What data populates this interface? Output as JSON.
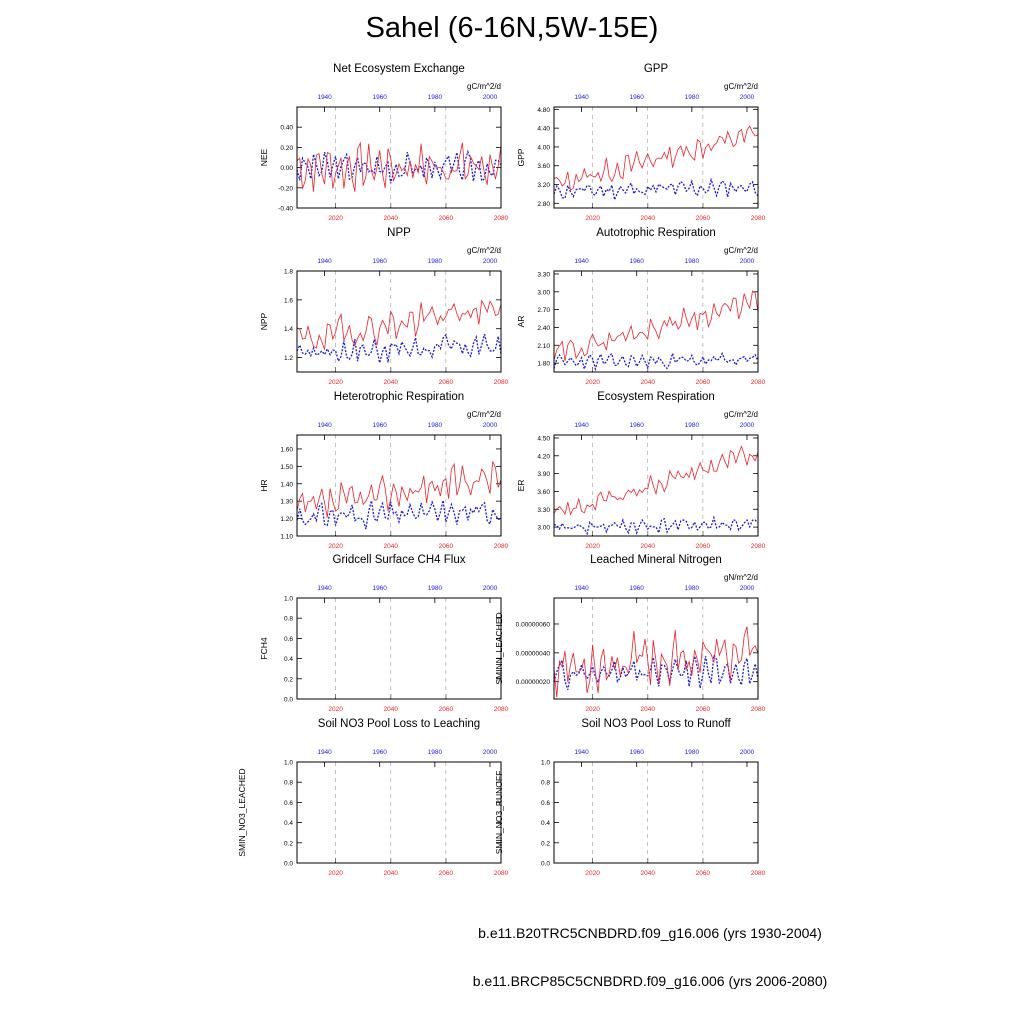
{
  "title": "Sahel (6-16N,5W-15E)",
  "colors": {
    "future": "#e8232a",
    "historical": "#1a1adc",
    "frame": "#000000",
    "grid": "#999999"
  },
  "axes": {
    "bottom_ticks": [
      "2020",
      "2040",
      "2060",
      "2080"
    ],
    "top_ticks": [
      "1940",
      "1960",
      "1980",
      "2000"
    ]
  },
  "legend": [
    {
      "label": "b.e11.B20TRC5CNBDRD.f09_g16.006 (yrs 1930-2004)",
      "color": "#1a1adc",
      "style": "dashed"
    },
    {
      "label": "b.e11.BRCP85C5CNBDRD.f09_g16.006 (yrs 2006-2080)",
      "color": "#e8232a",
      "style": "solid"
    }
  ],
  "chart_data": [
    {
      "type": "line",
      "title": "Net Ecosystem Exchange",
      "ylabel": "NEE",
      "units": "gC/m^2/d",
      "ylim": [
        -0.4,
        0.6
      ],
      "yticks": [
        "-0.40",
        "-0.20",
        "0.00",
        "0.20",
        "0.40"
      ],
      "ytick_values": [
        -0.4,
        -0.2,
        0,
        0.2,
        0.4
      ],
      "series": [
        {
          "name": "historical",
          "base": [
            0.0,
            0.0
          ],
          "amp": 0.14,
          "seed": 3
        },
        {
          "name": "future",
          "base": [
            0.0,
            0.02
          ],
          "amp": 0.22,
          "seed": 7
        }
      ]
    },
    {
      "type": "line",
      "title": "GPP",
      "ylabel": "GPP",
      "units": "gC/m^2/d",
      "ylim": [
        2.7,
        4.85
      ],
      "yticks": [
        "2.80",
        "3.20",
        "3.60",
        "4.00",
        "4.40",
        "4.80"
      ],
      "ytick_values": [
        2.8,
        3.2,
        3.6,
        4.0,
        4.4,
        4.8
      ],
      "series": [
        {
          "name": "historical",
          "base": [
            3.05,
            3.15
          ],
          "amp": 0.18,
          "seed": 11
        },
        {
          "name": "future",
          "base": [
            3.2,
            4.3
          ],
          "amp": 0.25,
          "seed": 13
        }
      ]
    },
    {
      "type": "line",
      "title": "NPP",
      "ylabel": "NPP",
      "units": "gC/m^2/d",
      "ylim": [
        1.1,
        1.8
      ],
      "yticks": [
        "1.2",
        "1.4",
        "1.6",
        "1.8"
      ],
      "ytick_values": [
        1.2,
        1.4,
        1.6,
        1.8
      ],
      "series": [
        {
          "name": "historical",
          "base": [
            1.24,
            1.28
          ],
          "amp": 0.09,
          "seed": 17
        },
        {
          "name": "future",
          "base": [
            1.32,
            1.55
          ],
          "amp": 0.12,
          "seed": 19
        }
      ]
    },
    {
      "type": "line",
      "title": "Autotrophic Respiration",
      "ylabel": "AR",
      "units": "gC/m^2/d",
      "ylim": [
        1.65,
        3.35
      ],
      "yticks": [
        "1.80",
        "2.10",
        "2.40",
        "2.70",
        "3.00",
        "3.30"
      ],
      "ytick_values": [
        1.8,
        2.1,
        2.4,
        2.7,
        3.0,
        3.3
      ],
      "series": [
        {
          "name": "historical",
          "base": [
            1.82,
            1.85
          ],
          "amp": 0.12,
          "seed": 23
        },
        {
          "name": "future",
          "base": [
            1.95,
            2.85
          ],
          "amp": 0.2,
          "seed": 29
        }
      ]
    },
    {
      "type": "line",
      "title": "Heterotrophic Respiration",
      "ylabel": "HR",
      "units": "gC/m^2/d",
      "ylim": [
        1.1,
        1.68
      ],
      "yticks": [
        "1.10",
        "1.20",
        "1.30",
        "1.40",
        "1.50",
        "1.60"
      ],
      "ytick_values": [
        1.1,
        1.2,
        1.3,
        1.4,
        1.5,
        1.6
      ],
      "series": [
        {
          "name": "historical",
          "base": [
            1.21,
            1.24
          ],
          "amp": 0.07,
          "seed": 31
        },
        {
          "name": "future",
          "base": [
            1.25,
            1.45
          ],
          "amp": 0.1,
          "seed": 37
        }
      ]
    },
    {
      "type": "line",
      "title": "Ecosystem Respiration",
      "ylabel": "ER",
      "units": "gC/m^2/d",
      "ylim": [
        2.85,
        4.55
      ],
      "yticks": [
        "3.00",
        "3.30",
        "3.60",
        "3.90",
        "4.20",
        "4.50"
      ],
      "ytick_values": [
        3.0,
        3.3,
        3.6,
        3.9,
        4.2,
        4.5
      ],
      "series": [
        {
          "name": "historical",
          "base": [
            3.0,
            3.05
          ],
          "amp": 0.12,
          "seed": 41
        },
        {
          "name": "future",
          "base": [
            3.2,
            4.25
          ],
          "amp": 0.17,
          "seed": 43
        }
      ]
    },
    {
      "type": "line",
      "title": "Gridcell Surface CH4 Flux",
      "ylabel": "FCH4",
      "units": "",
      "ylim": [
        0,
        1
      ],
      "yticks": [
        "0.0",
        "0.2",
        "0.4",
        "0.6",
        "0.8",
        "1.0"
      ],
      "ytick_values": [
        0,
        0.2,
        0.4,
        0.6,
        0.8,
        1.0
      ],
      "series": []
    },
    {
      "type": "line",
      "title": "Leached Mineral Nitrogen",
      "ylabel": "SMINN_LEACHED",
      "units": "gN/m^2/d",
      "ylim": [
        8e-08,
        7.8e-07
      ],
      "yticks": [
        "0.00000020",
        "0.00000040",
        "0.00000060"
      ],
      "ytick_values": [
        2e-07,
        4e-07,
        6e-07
      ],
      "series": [
        {
          "name": "historical",
          "base": [
            2.5e-07,
            2.8e-07
          ],
          "amp": 1e-07,
          "seed": 47
        },
        {
          "name": "future",
          "base": [
            3e-07,
            4e-07
          ],
          "amp": 1.8e-07,
          "seed": 53
        }
      ]
    },
    {
      "type": "line",
      "title": "Soil NO3 Pool Loss to Leaching",
      "ylabel": "SMIN_NO3_LEACHED",
      "units": "",
      "ylim": [
        0,
        1
      ],
      "yticks": [
        "0.0",
        "0.2",
        "0.4",
        "0.6",
        "0.8",
        "1.0"
      ],
      "ytick_values": [
        0,
        0.2,
        0.4,
        0.6,
        0.8,
        1.0
      ],
      "series": []
    },
    {
      "type": "line",
      "title": "Soil NO3 Pool Loss to Runoff",
      "ylabel": "SMIN_NO3_RUNOFF",
      "units": "",
      "ylim": [
        0,
        1
      ],
      "yticks": [
        "0.0",
        "0.2",
        "0.4",
        "0.6",
        "0.8",
        "1.0"
      ],
      "ytick_values": [
        0,
        0.2,
        0.4,
        0.6,
        0.8,
        1.0
      ],
      "series": []
    }
  ]
}
